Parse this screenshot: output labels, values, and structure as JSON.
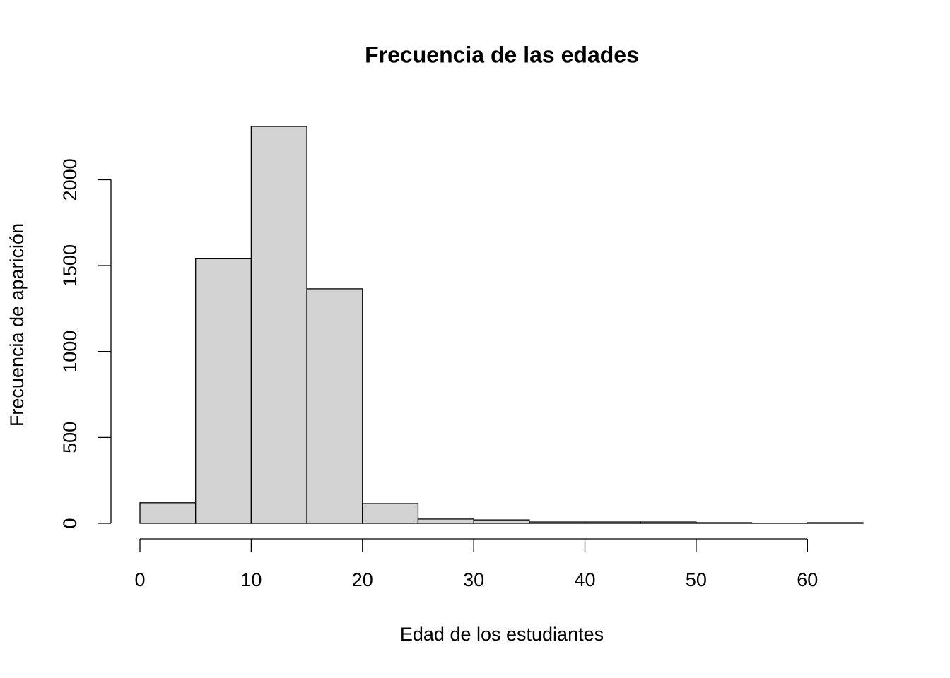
{
  "chart_data": {
    "type": "histogram",
    "title": "Frecuencia de las edades",
    "x_label": "Edad de los estudiantes",
    "y_label": "Frecuencia de aparición",
    "bins": [
      0,
      5,
      10,
      15,
      20,
      25,
      30,
      35,
      40,
      45,
      50,
      55,
      60,
      65
    ],
    "values": [
      120,
      1540,
      2310,
      1365,
      115,
      25,
      20,
      8,
      8,
      8,
      4,
      1,
      4
    ],
    "color": "#d3d3d3",
    "xlim": [
      0,
      65
    ],
    "xticks": [
      0,
      10,
      20,
      30,
      40,
      50,
      60
    ],
    "ylim": [
      0,
      2310
    ],
    "yticks": [
      0,
      500,
      1000,
      1500,
      2000
    ]
  }
}
